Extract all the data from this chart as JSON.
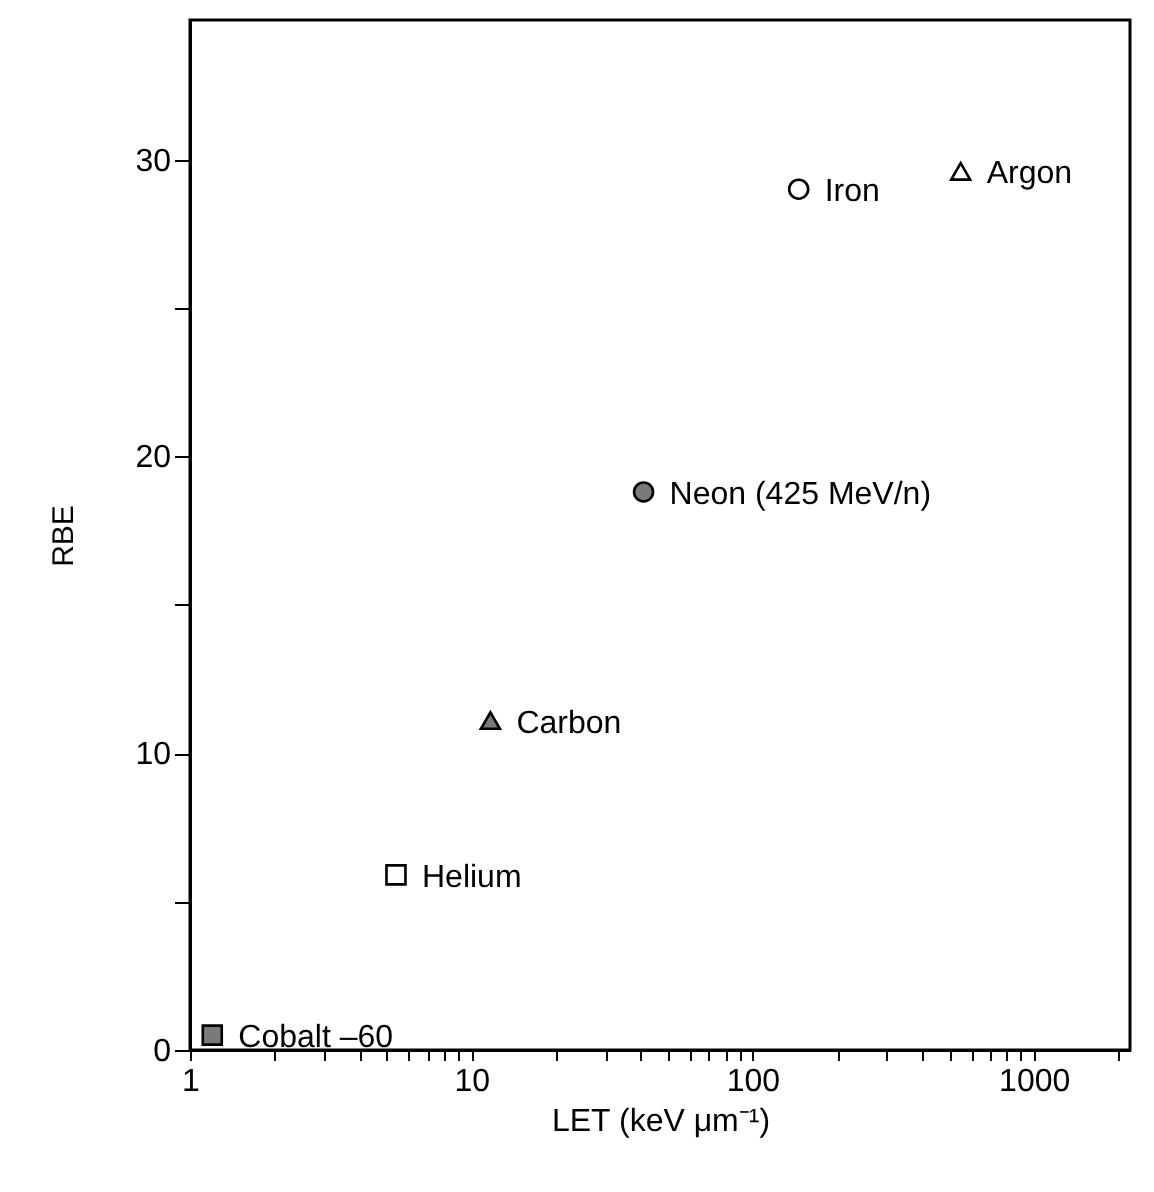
{
  "chart_data": {
    "type": "scatter",
    "xlabel": "LET (keV μm⁻¹)",
    "ylabel": "RBE",
    "log": "x",
    "grid": false,
    "xlim": [
      1,
      2200
    ],
    "ylim": [
      0,
      34.7
    ],
    "xticks": [
      1,
      {
        "value": 2,
        "label": null
      },
      {
        "value": 3,
        "label": null
      },
      {
        "value": 4,
        "label": null
      },
      {
        "value": 5,
        "label": null
      },
      {
        "value": 6,
        "label": null
      },
      {
        "value": 7,
        "label": null
      },
      {
        "value": 8,
        "label": null
      },
      {
        "value": 9,
        "label": null
      },
      10,
      {
        "value": 20,
        "label": null
      },
      {
        "value": 30,
        "label": null
      },
      {
        "value": 40,
        "label": null
      },
      {
        "value": 50,
        "label": null
      },
      {
        "value": 60,
        "label": null
      },
      {
        "value": 70,
        "label": null
      },
      {
        "value": 80,
        "label": null
      },
      {
        "value": 90,
        "label": null
      },
      100,
      {
        "value": 200,
        "label": null
      },
      {
        "value": 300,
        "label": null
      },
      {
        "value": 400,
        "label": null
      },
      {
        "value": 500,
        "label": null
      },
      {
        "value": 600,
        "label": null
      },
      {
        "value": 700,
        "label": null
      },
      {
        "value": 800,
        "label": null
      },
      {
        "value": 900,
        "label": null
      },
      1000,
      {
        "value": 2000,
        "label": null
      }
    ],
    "yticks": [
      0,
      {
        "value": 5,
        "label": null
      },
      10,
      {
        "value": 15,
        "label": null
      },
      20,
      {
        "value": 25,
        "label": null
      },
      30
    ],
    "series": [
      {
        "name": "Cobalt –60",
        "color": "#7a7a7a",
        "marker": "square",
        "x": [
          1.2
        ],
        "values": [
          0.5
        ]
      },
      {
        "name": "Helium",
        "color": "#000000",
        "marker": "square",
        "x": [
          5.4
        ],
        "values": [
          5.9
        ]
      },
      {
        "name": "Carbon",
        "color": "#7a7a7a",
        "marker": "triangle",
        "x": [
          11.7
        ],
        "values": [
          11.1
        ]
      },
      {
        "name": "Neon (425 MeV/n)",
        "color": "#7a7a7a",
        "marker": "circle",
        "x": [
          41
        ],
        "values": [
          18.8
        ]
      },
      {
        "name": "Iron",
        "color": "#000000",
        "marker": "circle",
        "x": [
          146
        ],
        "values": [
          29.0
        ]
      },
      {
        "name": "Argon",
        "color": "#000000",
        "marker": "triangle",
        "x": [
          550
        ],
        "values": [
          29.6
        ]
      }
    ]
  }
}
